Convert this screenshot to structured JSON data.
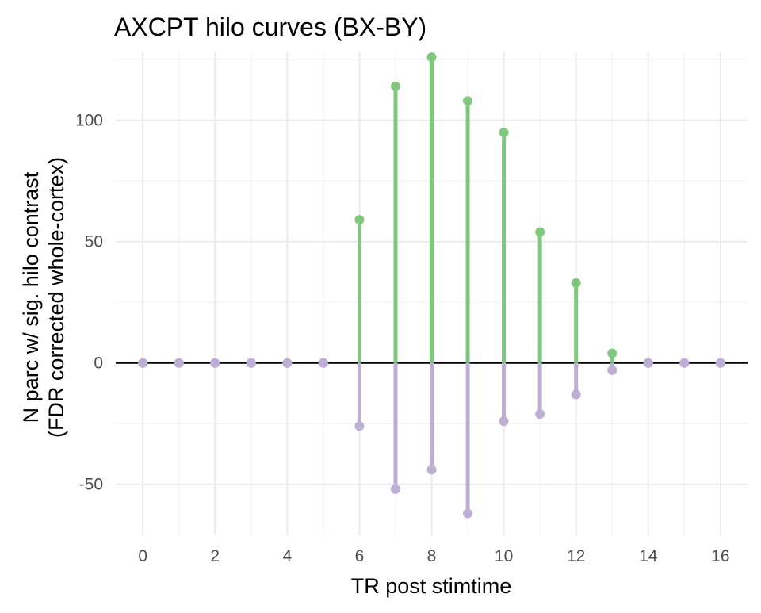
{
  "chart_data": {
    "type": "lollipop",
    "title": "AXCPT hilo curves (BX-BY)",
    "xlabel": "TR post stimtime",
    "ylabel_lines": [
      "N parc w/ sig. hilo contrast",
      "(FDR corrected whole-cortex)"
    ],
    "xlim": [
      -0.75,
      16.75
    ],
    "ylim": [
      -71,
      128
    ],
    "x_ticks": [
      0,
      2,
      4,
      6,
      8,
      10,
      12,
      14,
      16
    ],
    "x_tick_labels": [
      "0",
      "2",
      "4",
      "6",
      "8",
      "10",
      "12",
      "14",
      "16"
    ],
    "y_ticks": [
      -50,
      0,
      50,
      100
    ],
    "y_tick_labels": [
      "-50",
      "0",
      "50",
      "100"
    ],
    "grid": true,
    "zero_line": true,
    "x": [
      0,
      1,
      2,
      3,
      4,
      5,
      6,
      7,
      8,
      9,
      10,
      11,
      12,
      13,
      14,
      15,
      16
    ],
    "series": [
      {
        "color": "#7fc97f",
        "values": [
          0,
          0,
          0,
          0,
          0,
          0,
          59,
          114,
          126,
          108,
          95,
          54,
          33,
          4,
          0,
          0,
          0
        ]
      },
      {
        "color": "#beaed4",
        "values": [
          0,
          0,
          0,
          0,
          0,
          0,
          -26,
          -52,
          -44,
          -62,
          -24,
          -21,
          -13,
          -3,
          0,
          0,
          0
        ]
      }
    ]
  }
}
